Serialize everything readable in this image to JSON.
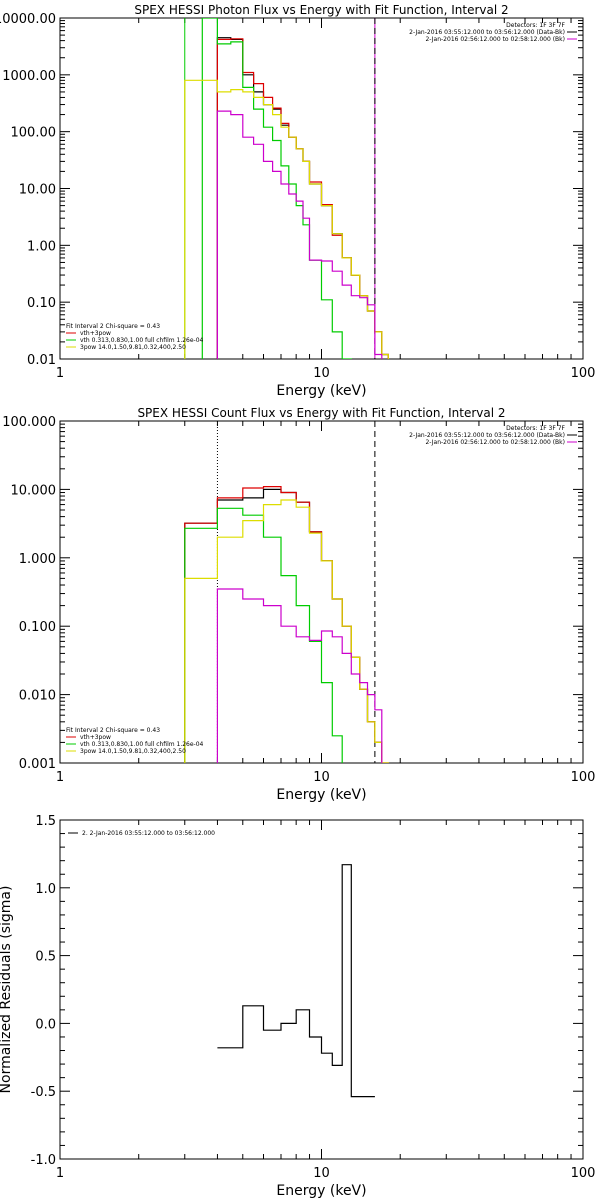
{
  "chart_data": [
    {
      "type": "line",
      "title": "SPEX HESSI Photon Flux vs Energy with Fit Function, Interval 2",
      "xlabel": "Energy (keV)",
      "ylabel": "",
      "xscale": "log",
      "yscale": "log",
      "xlim": [
        1,
        100
      ],
      "ylim": [
        0.01,
        10000
      ],
      "x_tick_labels": [
        "1",
        "10",
        "100"
      ],
      "y_tick_values": [
        0.01,
        0.1,
        1,
        10,
        100,
        1000,
        10000
      ],
      "y_tick_labels": [
        "0.01",
        "0.10",
        "1.00",
        "10.00",
        "100.00",
        "1000.00",
        "10000.00"
      ],
      "vlines": [
        {
          "x": 4.0,
          "style": "solid",
          "color": "#00cc00"
        },
        {
          "x": 3.0,
          "style": "solid",
          "color": "#00cc00"
        },
        {
          "x": 4.0,
          "style": "solid",
          "color": "#cc00cc"
        },
        {
          "x": 16.0,
          "style": "solid",
          "color": "#cc00cc"
        },
        {
          "x": 16.0,
          "style": "dashed",
          "color": "#000000"
        }
      ],
      "legend_top_right": [
        {
          "text": "Detectors: 1F 3F 7F",
          "color": "#000000"
        },
        {
          "text": "2-Jan-2016 03:55:12.000 to 03:56:12.000 (Data-Bk)",
          "color": "#000000"
        },
        {
          "text": "2-Jan-2016 02:56:12.000 to 02:58:12.000 (Bk)",
          "color": "#cc00cc"
        }
      ],
      "legend_bottom_left": [
        {
          "text": "Fit Interval 2   Chi-square = 0.43",
          "color": "#000000"
        },
        {
          "text": "vth+3pow",
          "color": "#dd0000"
        },
        {
          "text": "vth 0.313,0.830,1.00  full chfilm 1.26e-04",
          "color": "#00cc00"
        },
        {
          "text": "3pow 14.0,1.50,9.81,0.32,400,2.50",
          "color": "#dddd00"
        }
      ],
      "edges": [
        3.0,
        3.5,
        4.0,
        4.5,
        5.0,
        5.5,
        6.0,
        6.5,
        7.0,
        7.5,
        8.0,
        8.5,
        9.0,
        10.0,
        11.0,
        12.0,
        13.0,
        14.0,
        15.0,
        16.0,
        17.0,
        18.0,
        20.0
      ],
      "series": [
        {
          "name": "Data-Bk",
          "color": "#000000",
          "values": [
            null,
            null,
            4500,
            4200,
            1000,
            500,
            300,
            250,
            130,
            80,
            50,
            30,
            12,
            5,
            1.6,
            0.6,
            0.3,
            0.13,
            0.07,
            0.03,
            0.012,
            null
          ]
        },
        {
          "name": "vth+3pow",
          "color": "#dd0000",
          "values": [
            null,
            null,
            4200,
            4300,
            1100,
            700,
            400,
            260,
            140,
            80,
            50,
            30,
            13,
            5.2,
            1.5,
            0.6,
            0.3,
            0.13,
            0.07,
            0.03,
            0.012,
            null
          ]
        },
        {
          "name": "vth",
          "color": "#00cc00",
          "values": [
            null,
            10000,
            3500,
            3800,
            600,
            250,
            120,
            70,
            25,
            12,
            5,
            2.3,
            0.55,
            0.11,
            0.03,
            0.01,
            null,
            null,
            null,
            null,
            null,
            null
          ]
        },
        {
          "name": "3pow",
          "color": "#dddd00",
          "values": [
            800,
            800,
            500,
            550,
            500,
            400,
            300,
            200,
            120,
            80,
            50,
            30,
            12,
            5,
            1.6,
            0.6,
            0.3,
            0.13,
            0.07,
            0.03,
            0.012,
            0.008
          ]
        },
        {
          "name": "Bk",
          "color": "#cc00cc",
          "values": [
            null,
            null,
            230,
            200,
            80,
            60,
            30,
            20,
            12,
            8,
            6,
            3,
            0.55,
            0.53,
            0.35,
            0.2,
            0.13,
            0.12,
            0.09,
            0.012,
            null,
            null
          ]
        }
      ]
    },
    {
      "type": "line",
      "title": "SPEX HESSI Count Flux vs Energy with Fit Function, Interval 2",
      "xlabel": "Energy (keV)",
      "ylabel": "",
      "xscale": "log",
      "yscale": "log",
      "xlim": [
        1,
        100
      ],
      "ylim": [
        0.001,
        100
      ],
      "x_tick_labels": [
        "1",
        "10",
        "100"
      ],
      "y_tick_values": [
        0.001,
        0.01,
        0.1,
        1,
        10,
        100
      ],
      "y_tick_labels": [
        "0.001",
        "0.010",
        "0.100",
        "1.000",
        "10.000",
        "100.000"
      ],
      "vlines": [
        {
          "x": 4.0,
          "style": "dotted",
          "color": "#000000"
        },
        {
          "x": 16.0,
          "style": "dashed",
          "color": "#000000"
        }
      ],
      "legend_top_right": [
        {
          "text": "Detectors: 1F 3F 7F",
          "color": "#000000"
        },
        {
          "text": "2-Jan-2016 03:55:12.000 to 03:56:12.000 (Data-Bk)",
          "color": "#000000"
        },
        {
          "text": "2-Jan-2016 02:56:12.000 to 02:58:12.000 (Bk)",
          "color": "#cc00cc"
        }
      ],
      "legend_bottom_left": [
        {
          "text": "Fit Interval 2   Chi-square = 0.43",
          "color": "#000000"
        },
        {
          "text": "vth+3pow",
          "color": "#dd0000"
        },
        {
          "text": "vth 0.313,0.830,1.00  full chfilm 1.26e-04",
          "color": "#00cc00"
        },
        {
          "text": "3pow 14.0,1.50,9.81,0.32,400,2.50",
          "color": "#dddd00"
        }
      ],
      "edges": [
        3.0,
        4.0,
        5.0,
        6.0,
        7.0,
        8.0,
        9.0,
        10.0,
        11.0,
        12.0,
        13.0,
        14.0,
        15.0,
        16.0,
        17.0,
        18.0,
        20.0
      ],
      "series": [
        {
          "name": "Data-Bk",
          "color": "#000000",
          "values": [
            3.2,
            7.0,
            7.5,
            10.0,
            9.0,
            6.5,
            2.4,
            0.9,
            0.25,
            0.1,
            0.035,
            0.012,
            0.004,
            0.002,
            0.001,
            null
          ]
        },
        {
          "name": "vth+3pow",
          "color": "#dd0000",
          "values": [
            3.2,
            7.5,
            10.5,
            11.0,
            9.0,
            6.5,
            2.4,
            0.9,
            0.25,
            0.1,
            0.035,
            0.012,
            0.004,
            0.002,
            0.001,
            null
          ]
        },
        {
          "name": "vth",
          "color": "#00cc00",
          "values": [
            2.7,
            5.3,
            4.2,
            2.0,
            0.55,
            0.2,
            0.06,
            0.015,
            0.0025,
            0.0008,
            null,
            null,
            null,
            null,
            null,
            null
          ]
        },
        {
          "name": "3pow",
          "color": "#dddd00",
          "values": [
            0.5,
            2.0,
            3.5,
            6.0,
            7.0,
            5.5,
            2.3,
            0.9,
            0.25,
            0.1,
            0.035,
            0.012,
            0.004,
            0.002,
            0.001,
            null
          ]
        },
        {
          "name": "Bk",
          "color": "#cc00cc",
          "values": [
            null,
            0.35,
            0.25,
            0.2,
            0.1,
            0.07,
            0.062,
            0.085,
            0.07,
            0.04,
            0.02,
            0.015,
            0.01,
            0.006,
            null,
            null
          ]
        }
      ]
    },
    {
      "type": "line",
      "title": "",
      "xlabel": "Energy (keV)",
      "ylabel": "Normalized Residuals (sigma)",
      "xscale": "log",
      "yscale": "linear",
      "xlim": [
        1,
        100
      ],
      "ylim": [
        -1.0,
        1.5
      ],
      "x_tick_labels": [
        "1",
        "10",
        "100"
      ],
      "y_tick_values": [
        -1.0,
        -0.5,
        0.0,
        0.5,
        1.0,
        1.5
      ],
      "y_tick_labels": [
        "-1.0",
        "-0.5",
        "0.0",
        "0.5",
        "1.0",
        "1.5"
      ],
      "vlines": [],
      "legend_top_left": [
        {
          "text": "2.  2-Jan-2016 03:55:12.000 to 03:56:12.000",
          "color": "#000000"
        }
      ],
      "edges": [
        4.0,
        5.0,
        6.0,
        7.0,
        8.0,
        9.0,
        10.0,
        11.0,
        12.0,
        13.0,
        14.0,
        16.0
      ],
      "series": [
        {
          "name": "",
          "color": "#000000",
          "values": [
            -0.18,
            0.13,
            -0.05,
            0.0,
            0.1,
            -0.1,
            -0.22,
            -0.31,
            1.17,
            -0.54,
            -0.54
          ]
        }
      ]
    }
  ]
}
